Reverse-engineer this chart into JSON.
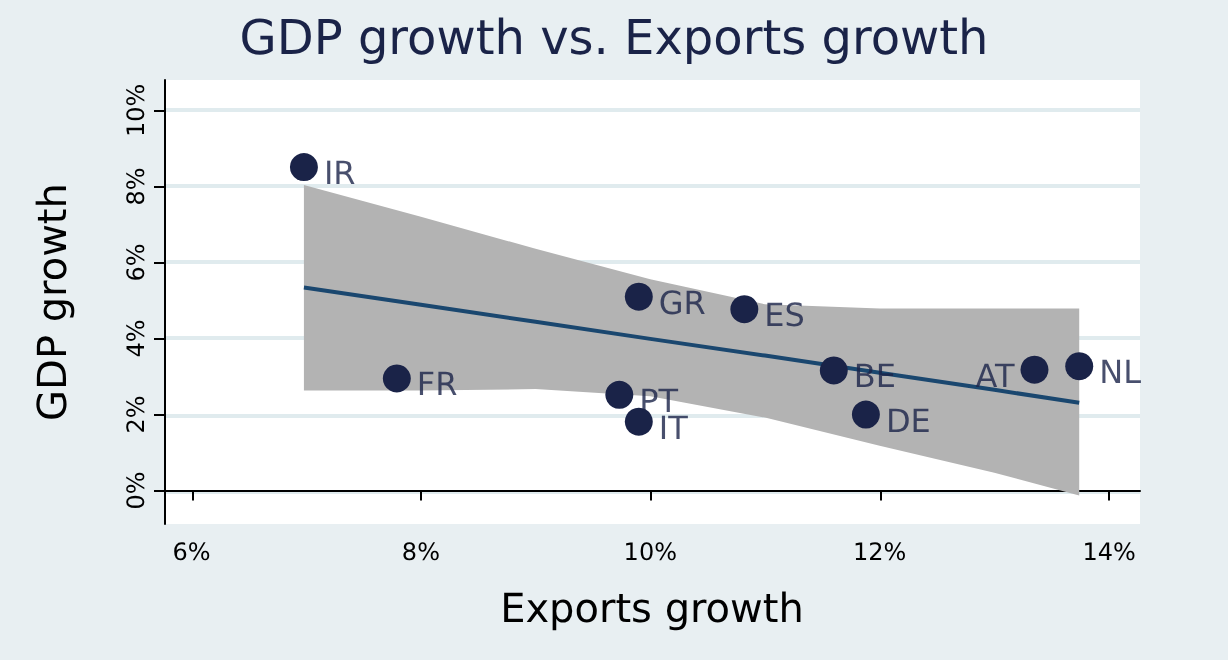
{
  "chart_data": {
    "type": "scatter",
    "title": "GDP growth vs. Exports growth",
    "xlabel": "Exports growth",
    "ylabel": "GDP growth",
    "x": [
      6.98,
      7.79,
      9.73,
      9.9,
      9.9,
      10.82,
      11.6,
      11.88,
      13.35,
      13.74
    ],
    "series": [
      {
        "color": "#1a2348",
        "values": [
          8.51,
          2.95,
          2.52,
          1.81,
          5.1,
          4.77,
          3.16,
          2.0,
          3.18,
          3.27
        ]
      },
      {
        "type": "line",
        "color": "#1a476f",
        "x": [
          6.98,
          8,
          9,
          10,
          11,
          12,
          13,
          13.74
        ],
        "values": [
          5.34,
          4.89,
          4.44,
          3.99,
          3.55,
          3.1,
          2.65,
          2.31
        ],
        "lower": [
          2.63,
          2.63,
          2.67,
          2.48,
          1.92,
          1.18,
          0.47,
          -0.13
        ],
        "upper": [
          8.04,
          7.2,
          6.36,
          5.56,
          4.9,
          4.79,
          4.79,
          4.79
        ],
        "marker": "none"
      }
    ],
    "annotations": [
      {
        "text": "IR",
        "x": 6.98,
        "y": 8.51
      },
      {
        "text": "FR",
        "x": 7.79,
        "y": 2.95
      },
      {
        "text": "PT",
        "x": 9.73,
        "y": 2.52
      },
      {
        "text": "IT",
        "x": 9.9,
        "y": 1.81
      },
      {
        "text": "GR",
        "x": 9.9,
        "y": 5.1
      },
      {
        "text": "ES",
        "x": 10.82,
        "y": 4.77
      },
      {
        "text": "BE",
        "x": 11.6,
        "y": 3.16
      },
      {
        "text": "DE",
        "x": 11.88,
        "y": 2.0
      },
      {
        "text": "AT",
        "x": 13.35,
        "y": 3.18
      },
      {
        "text": "NL",
        "x": 13.74,
        "y": 3.27
      }
    ],
    "xlim": [
      5.76,
      14.27
    ],
    "xticks": [
      {
        "value": 6,
        "label": "6%"
      },
      {
        "value": 8,
        "label": "8%"
      },
      {
        "value": 10,
        "label": "10%"
      },
      {
        "value": 12,
        "label": "12%"
      },
      {
        "value": 14,
        "label": "14%"
      }
    ],
    "ylim": [
      -0.88,
      10.8
    ],
    "yticks": [
      {
        "value": 0,
        "label": "0%"
      },
      {
        "value": 2,
        "label": "2%"
      },
      {
        "value": 4,
        "label": "4%"
      },
      {
        "value": 6,
        "label": "6%"
      },
      {
        "value": 8,
        "label": "8%"
      },
      {
        "value": 10,
        "label": "10%"
      }
    ],
    "grid": "y",
    "marker": "circle",
    "line_style": "solid"
  }
}
